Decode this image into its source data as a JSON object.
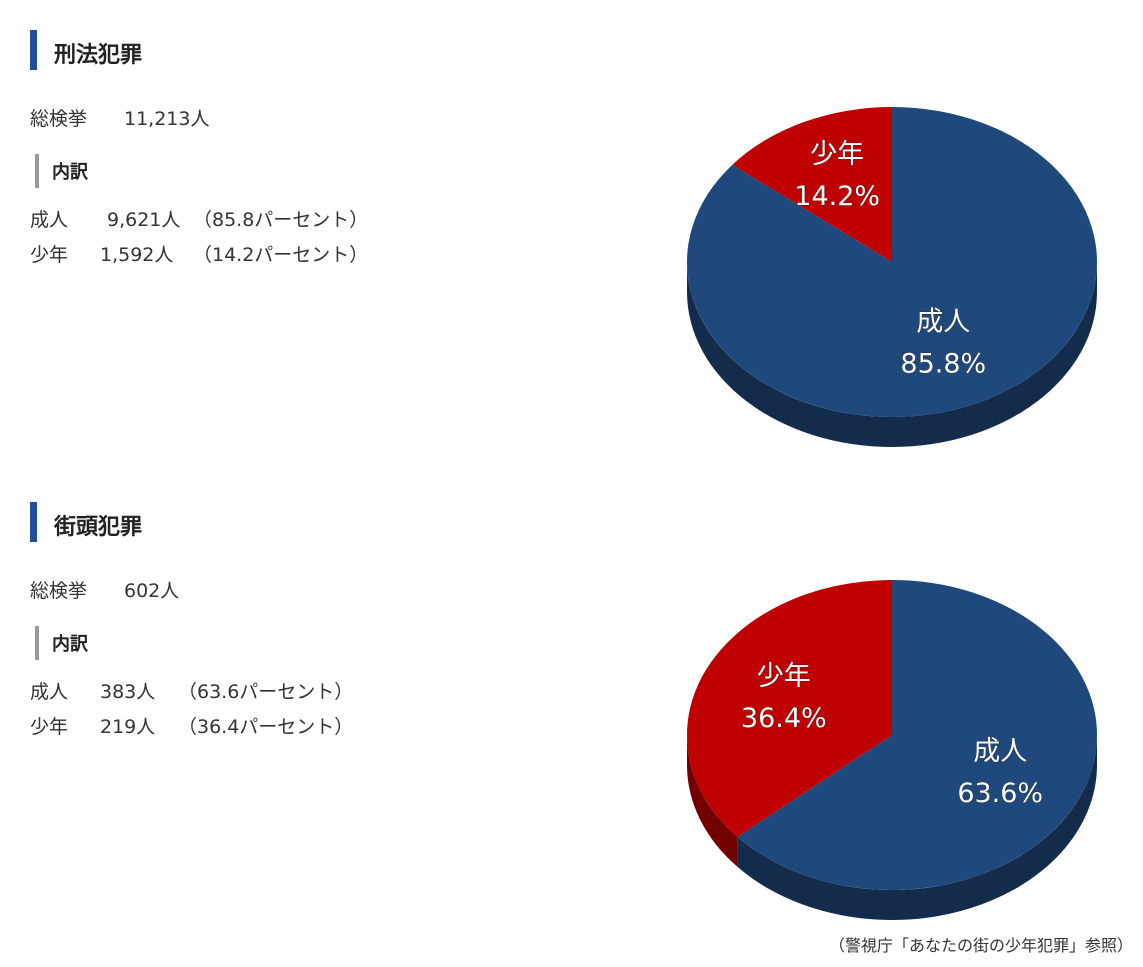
{
  "sections": [
    {
      "heading": "刑法犯罪",
      "total_label": "総検挙",
      "total": "11,213人",
      "breakdown_label": "内訳",
      "rows": [
        {
          "label": "成人",
          "count": "9,621人",
          "share": "（85.8パーセント）"
        },
        {
          "label": "少年",
          "count": "1,592人",
          "share": "（14.2パーセント）"
        }
      ]
    },
    {
      "heading": "街頭犯罪",
      "total_label": "総検挙",
      "total": "602人",
      "breakdown_label": "内訳",
      "rows": [
        {
          "label": "成人",
          "count": "383人",
          "share": "（63.6パーセント）"
        },
        {
          "label": "少年",
          "count": "219人",
          "share": "（36.4パーセント）"
        }
      ]
    }
  ],
  "chart_data": [
    {
      "type": "pie",
      "categories": [
        "成人",
        "少年"
      ],
      "values": [
        85.8,
        14.2
      ],
      "value_labels": [
        "85.8%",
        "14.2%"
      ],
      "colors": [
        "#1f497d",
        "#c00000"
      ]
    },
    {
      "type": "pie",
      "categories": [
        "成人",
        "少年"
      ],
      "values": [
        63.6,
        36.4
      ],
      "value_labels": [
        "63.6%",
        "36.4%"
      ],
      "colors": [
        "#1f497d",
        "#c00000"
      ]
    }
  ],
  "source": "（警視庁「あなたの街の少年犯罪」参照）"
}
